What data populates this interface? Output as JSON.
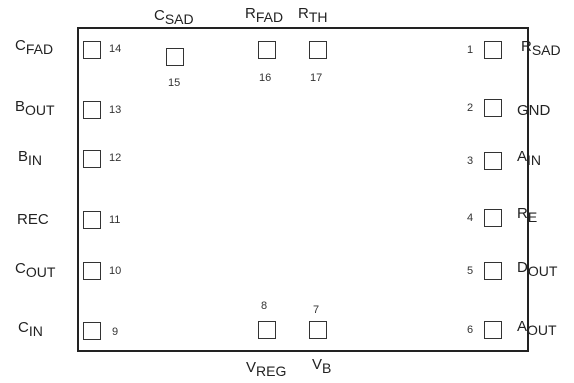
{
  "pins": [
    {
      "number": "1",
      "name": {
        "main": "R",
        "sub": "SAD"
      }
    },
    {
      "number": "2",
      "name": {
        "main": "GND",
        "sub": ""
      }
    },
    {
      "number": "3",
      "name": {
        "main": "A",
        "sub": "IN"
      }
    },
    {
      "number": "4",
      "name": {
        "main": "R",
        "sub": "E"
      }
    },
    {
      "number": "5",
      "name": {
        "main": "D",
        "sub": "OUT"
      }
    },
    {
      "number": "6",
      "name": {
        "main": "A",
        "sub": "OUT"
      }
    },
    {
      "number": "7",
      "name": {
        "main": "V",
        "sub": "B"
      }
    },
    {
      "number": "8",
      "name": {
        "main": "V",
        "sub": "REG"
      }
    },
    {
      "number": "9",
      "name": {
        "main": "C",
        "sub": "IN"
      }
    },
    {
      "number": "10",
      "name": {
        "main": "C",
        "sub": "OUT"
      }
    },
    {
      "number": "11",
      "name": {
        "main": "REC",
        "sub": ""
      }
    },
    {
      "number": "12",
      "name": {
        "main": "B",
        "sub": "IN"
      }
    },
    {
      "number": "13",
      "name": {
        "main": "B",
        "sub": "OUT"
      }
    },
    {
      "number": "14",
      "name": {
        "main": "C",
        "sub": "FAD"
      }
    },
    {
      "number": "15",
      "name": {
        "main": "C",
        "sub": "SAD"
      }
    },
    {
      "number": "16",
      "name": {
        "main": "R",
        "sub": "FAD"
      }
    },
    {
      "number": "17",
      "name": {
        "main": "R",
        "sub": "TH"
      }
    }
  ]
}
